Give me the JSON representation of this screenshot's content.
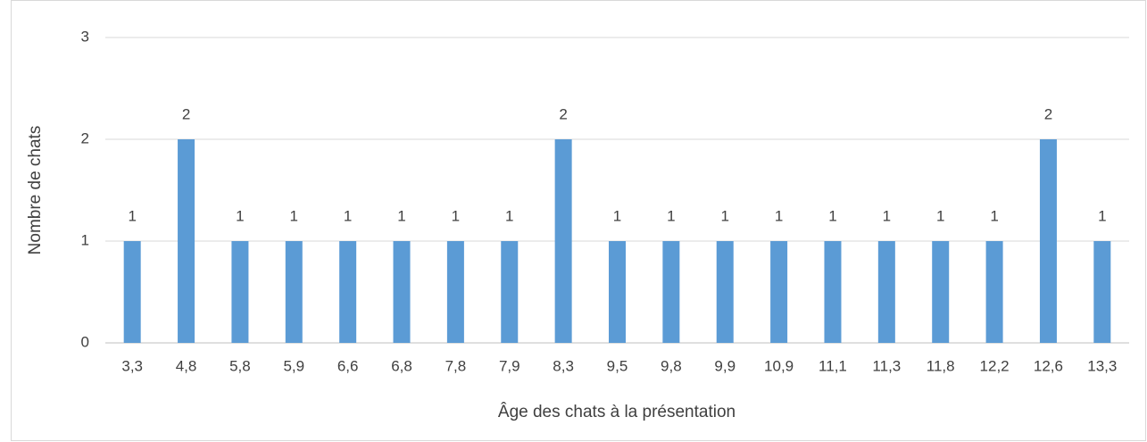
{
  "chart_data": {
    "type": "bar",
    "x_label": "Âge des chats à la présentation",
    "y_label": "Nombre de chats",
    "categories": [
      "3,3",
      "4,8",
      "5,8",
      "5,9",
      "6,6",
      "6,8",
      "7,8",
      "7,9",
      "8,3",
      "9,5",
      "9,8",
      "9,9",
      "10,9",
      "11,1",
      "11,3",
      "11,8",
      "12,2",
      "12,6",
      "13,3"
    ],
    "values": [
      1,
      2,
      1,
      1,
      1,
      1,
      1,
      1,
      2,
      1,
      1,
      1,
      1,
      1,
      1,
      1,
      1,
      2,
      1
    ],
    "color": "#5b9bd5",
    "ylim": [
      0,
      3
    ],
    "yticks": [
      0,
      1,
      2,
      3
    ],
    "grid": true,
    "data_labels": true
  }
}
